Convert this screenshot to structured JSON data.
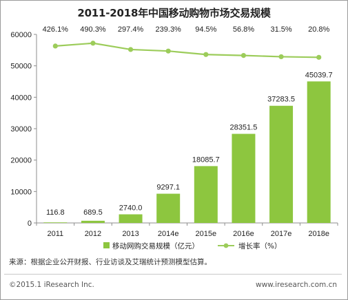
{
  "chart_data": {
    "type": "bar",
    "title": "2011-2018年中国移动购物市场交易规模",
    "categories": [
      "2011",
      "2012",
      "2013",
      "2014e",
      "2015e",
      "2016e",
      "2017e",
      "2018e"
    ],
    "series": [
      {
        "name": "移动网购交易规模（亿元）",
        "type": "bar",
        "values": [
          116.8,
          689.5,
          2740.0,
          9297.1,
          18085.7,
          28351.5,
          37283.5,
          45039.7
        ],
        "labels": [
          "116.8",
          "689.5",
          "2740.0",
          "9297.1",
          "18085.7",
          "28351.5",
          "37283.5",
          "45039.7"
        ],
        "color": "#8dc63f"
      },
      {
        "name": "增长率（%）",
        "type": "line",
        "values": [
          426.1,
          490.3,
          297.4,
          239.3,
          94.5,
          56.8,
          31.5,
          20.8
        ],
        "labels": [
          "426.1%",
          "490.3%",
          "297.4%",
          "239.3%",
          "94.5%",
          "56.8%",
          "31.5%",
          "20.8%"
        ],
        "plotted_on_left_axis_at": [
          56300,
          57200,
          55200,
          54700,
          53600,
          53300,
          52900,
          52700
        ],
        "color": "#9ccc5a"
      }
    ],
    "yticks": [
      "0",
      "10000",
      "20000",
      "30000",
      "40000",
      "50000",
      "60000"
    ],
    "ylim": [
      0,
      60000
    ],
    "xlabel": "",
    "ylabel": "",
    "grid": false,
    "legend": "bottom-center"
  },
  "footer": {
    "source": "来源：根据企业公开财报、行业访谈及艾瑞统计预测模型估算。",
    "copyright": "©2015.1 iResearch Inc.",
    "website": "www.iresearch.com.cn"
  }
}
